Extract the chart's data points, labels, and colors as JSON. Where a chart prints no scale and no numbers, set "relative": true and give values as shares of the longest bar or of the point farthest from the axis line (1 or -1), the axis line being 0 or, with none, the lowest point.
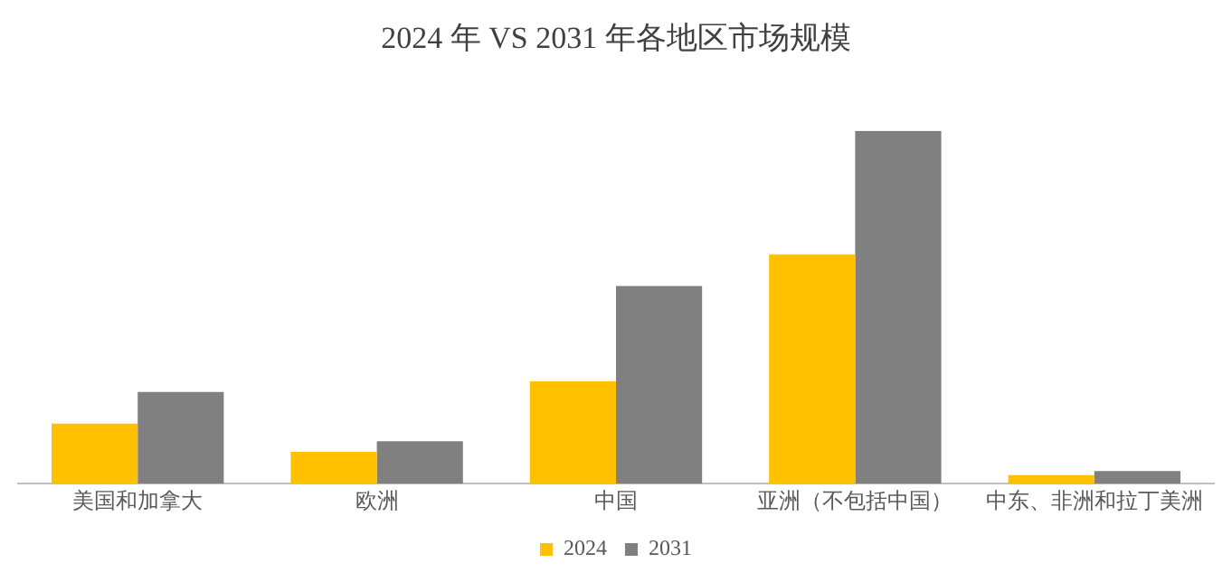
{
  "chart_data": {
    "type": "bar",
    "title": "2024 年 VS 2031 年各地区市场规模",
    "relative": true,
    "categories": [
      "美国和加拿大",
      "欧洲",
      "中国",
      "亚洲（不包括中国）",
      "中东、非洲和拉丁美洲"
    ],
    "series": [
      {
        "name": "2024",
        "color": "#ffc000",
        "values": [
          0.17,
          0.09,
          0.29,
          0.65,
          0.024
        ]
      },
      {
        "name": "2031",
        "color": "#808080",
        "values": [
          0.26,
          0.12,
          0.56,
          1,
          0.036
        ]
      }
    ],
    "legend": "bottom",
    "grid": false
  }
}
